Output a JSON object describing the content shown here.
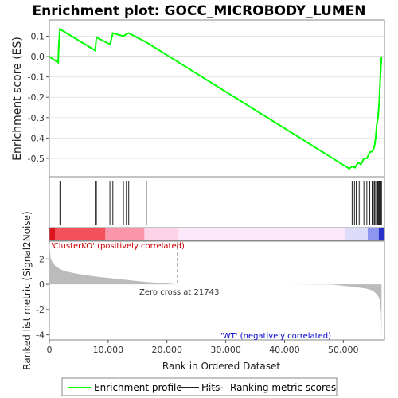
{
  "chart_data": {
    "type": "line",
    "title": "Enrichment plot: GOCC_MICROBODY_LUMEN",
    "xlabel": "Rank in Ordered Dataset",
    "es_ylabel": "Enrichment score (ES)",
    "metric_ylabel": "Ranked list metric (Signal2Noise)",
    "xlim": [
      0,
      57000
    ],
    "x_ticks": [
      0,
      10000,
      20000,
      30000,
      40000,
      50000
    ],
    "x_tick_labels": [
      "0",
      "10,000",
      "20,000",
      "30,000",
      "40,000",
      "50,000"
    ],
    "es_ylim": [
      -0.59,
      0.18
    ],
    "es_ticks": [
      0.1,
      0.0,
      -0.1,
      -0.2,
      -0.3,
      -0.4,
      -0.5
    ],
    "es_tick_labels": [
      "0.1",
      "0.0",
      "-0.1",
      "-0.2",
      "-0.3",
      "-0.4",
      "-0.5"
    ],
    "metric_ylim": [
      -4.4,
      3.4
    ],
    "metric_ticks": [
      2,
      0,
      -2,
      -4
    ],
    "metric_tick_labels": [
      "2",
      "0",
      "-2",
      "-4"
    ],
    "series": [
      {
        "name": "Enrichment profile",
        "color": "#00ff00",
        "x": [
          0,
          1500,
          1600,
          1800,
          7800,
          8000,
          10300,
          10500,
          10800,
          12600,
          13100,
          13500,
          16500,
          51000,
          51500,
          52000,
          52500,
          53000,
          53500,
          54000,
          54500,
          55000,
          55300,
          55500,
          55700,
          55900,
          56100,
          56300,
          56500
        ],
        "y": [
          0.0,
          -0.03,
          0.05,
          0.135,
          0.03,
          0.095,
          0.06,
          0.08,
          0.115,
          0.1,
          0.11,
          0.115,
          0.07,
          -0.55,
          -0.54,
          -0.545,
          -0.52,
          -0.53,
          -0.5,
          -0.5,
          -0.47,
          -0.465,
          -0.44,
          -0.4,
          -0.33,
          -0.3,
          -0.22,
          -0.1,
          0.0
        ]
      }
    ],
    "hits": [
      1800,
      1950,
      7800,
      8000,
      10300,
      10800,
      12600,
      13100,
      13500,
      16500,
      51500,
      51900,
      52200,
      52700,
      53000,
      53500,
      54000,
      54500,
      54900,
      55100,
      55300,
      55500,
      55700,
      55800,
      55900,
      56000,
      56100,
      56200,
      56300,
      56400,
      56500
    ],
    "metric_curve": {
      "x": [
        0,
        200,
        500,
        1000,
        2000,
        3000,
        5000,
        8000,
        10000,
        13000,
        16000,
        19000,
        21743,
        30000,
        40000,
        48000,
        50000,
        52000,
        54000,
        55000,
        55500,
        56000,
        56200,
        56400,
        56500
      ],
      "y": [
        3.3,
        2.1,
        1.75,
        1.45,
        1.15,
        1.0,
        0.8,
        0.6,
        0.5,
        0.35,
        0.2,
        0.1,
        0.0,
        0.0,
        0.0,
        -0.03,
        -0.12,
        -0.22,
        -0.35,
        -0.5,
        -0.7,
        -1.0,
        -1.3,
        -2.2,
        -4.2
      ]
    },
    "zero_cross": 21743,
    "annotations": {
      "positive": "'ClusterKO' (positively correlated)",
      "zero_cross": "Zero cross at 21743",
      "negative": "'WT' (negatively correlated)"
    },
    "legend": {
      "placement": "bottom",
      "items": [
        {
          "label": "Enrichment profile",
          "color": "#00ff00"
        },
        {
          "label": "Hits",
          "color": "#222222"
        },
        {
          "label": "Ranking metric scores",
          "color": "#cccccc"
        }
      ]
    },
    "colors": {
      "positive_annotation": "#cc0000",
      "negative_annotation": "#0000cc",
      "metric_fill": "#bbbbbb"
    }
  }
}
